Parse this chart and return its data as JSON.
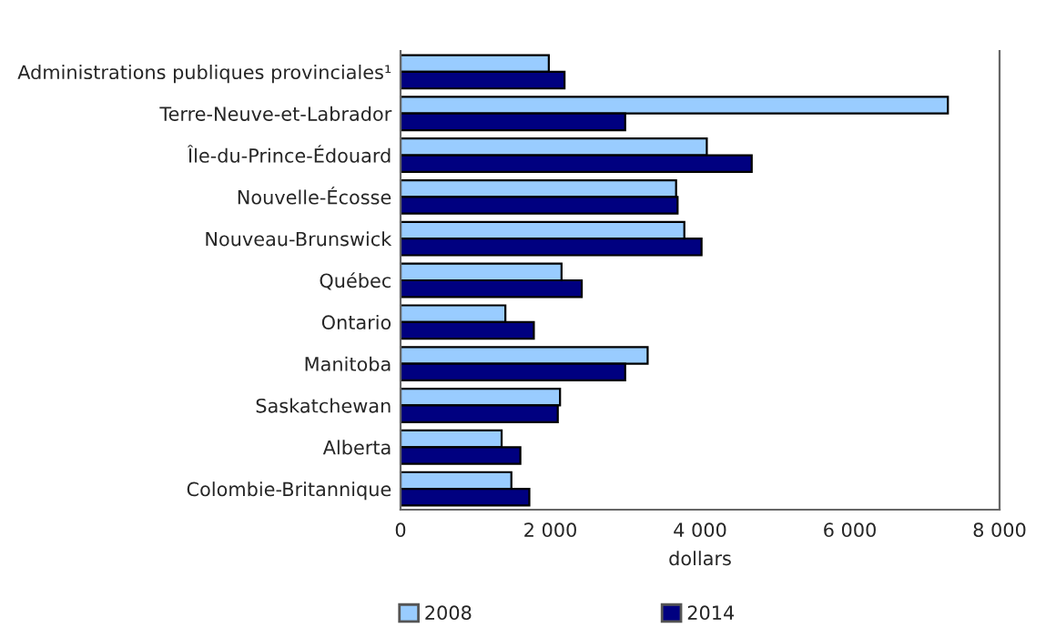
{
  "chart_data": {
    "type": "bar",
    "orientation": "horizontal",
    "xlabel": "dollars",
    "categories": [
      "Administrations publiques provinciales¹",
      "Terre-Neuve-et-Labrador",
      "Île-du-Prince-Édouard",
      "Nouvelle-Écosse",
      "Nouveau-Brunswick",
      "Québec",
      "Ontario",
      "Manitoba",
      "Saskatchewan",
      "Alberta",
      "Colombie-Britannique"
    ],
    "series": [
      {
        "name": "2008",
        "color": "#99ccff",
        "values": [
          1980,
          7310,
          4090,
          3680,
          3790,
          2150,
          1400,
          3300,
          2130,
          1350,
          1480
        ]
      },
      {
        "name": "2014",
        "color": "#000080",
        "values": [
          2190,
          3000,
          4690,
          3700,
          4020,
          2420,
          1780,
          3000,
          2100,
          1600,
          1720
        ]
      }
    ],
    "xlim": [
      0,
      8000
    ],
    "xticks": [
      {
        "value": 0,
        "label": "0"
      },
      {
        "value": 2000,
        "label": "2 000"
      },
      {
        "value": 4000,
        "label": "4 000"
      },
      {
        "value": 6000,
        "label": "6 000"
      },
      {
        "value": 8000,
        "label": "8 000"
      }
    ],
    "grid": false,
    "legend": "bottom"
  }
}
